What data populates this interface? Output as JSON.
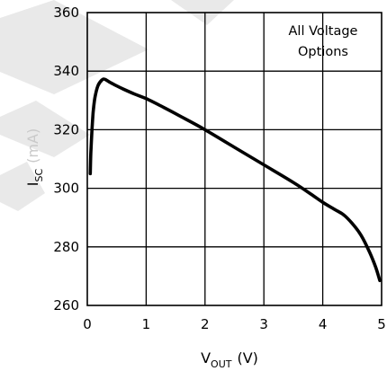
{
  "chart_data": {
    "type": "line",
    "title": "",
    "xlabel": {
      "main": "V",
      "sub": "OUT",
      "unit": "(V)"
    },
    "ylabel": {
      "main": "I",
      "sub": "SC",
      "unit": "(mA)"
    },
    "xlim": [
      0,
      5
    ],
    "ylim": [
      260,
      360
    ],
    "x_ticks": [
      0,
      1,
      2,
      3,
      4,
      5
    ],
    "y_ticks": [
      260,
      280,
      300,
      320,
      340,
      360
    ],
    "x_tick_labels": [
      "0",
      "1",
      "2",
      "3",
      "4",
      "5"
    ],
    "y_tick_labels": [
      "260",
      "280",
      "300",
      "320",
      "340",
      "360"
    ],
    "grid": true,
    "annotations": [
      "All Voltage",
      "Options"
    ],
    "series": [
      {
        "x": [
          0.05,
          0.06,
          0.08,
          0.1,
          0.13,
          0.18,
          0.25,
          0.3,
          0.4,
          0.6,
          0.8,
          1.0,
          1.3,
          1.6,
          2.0,
          2.5,
          3.0,
          3.5,
          3.8,
          4.0,
          4.2,
          4.35,
          4.5,
          4.65,
          4.8,
          4.9,
          4.97
        ],
        "y": [
          305,
          312,
          320,
          326,
          331,
          335,
          337,
          337.2,
          336,
          334,
          332.2,
          330.6,
          327.6,
          324.4,
          320,
          314,
          308,
          302,
          298,
          295.2,
          292.8,
          291,
          288,
          284,
          278,
          273,
          268.5
        ]
      }
    ]
  }
}
